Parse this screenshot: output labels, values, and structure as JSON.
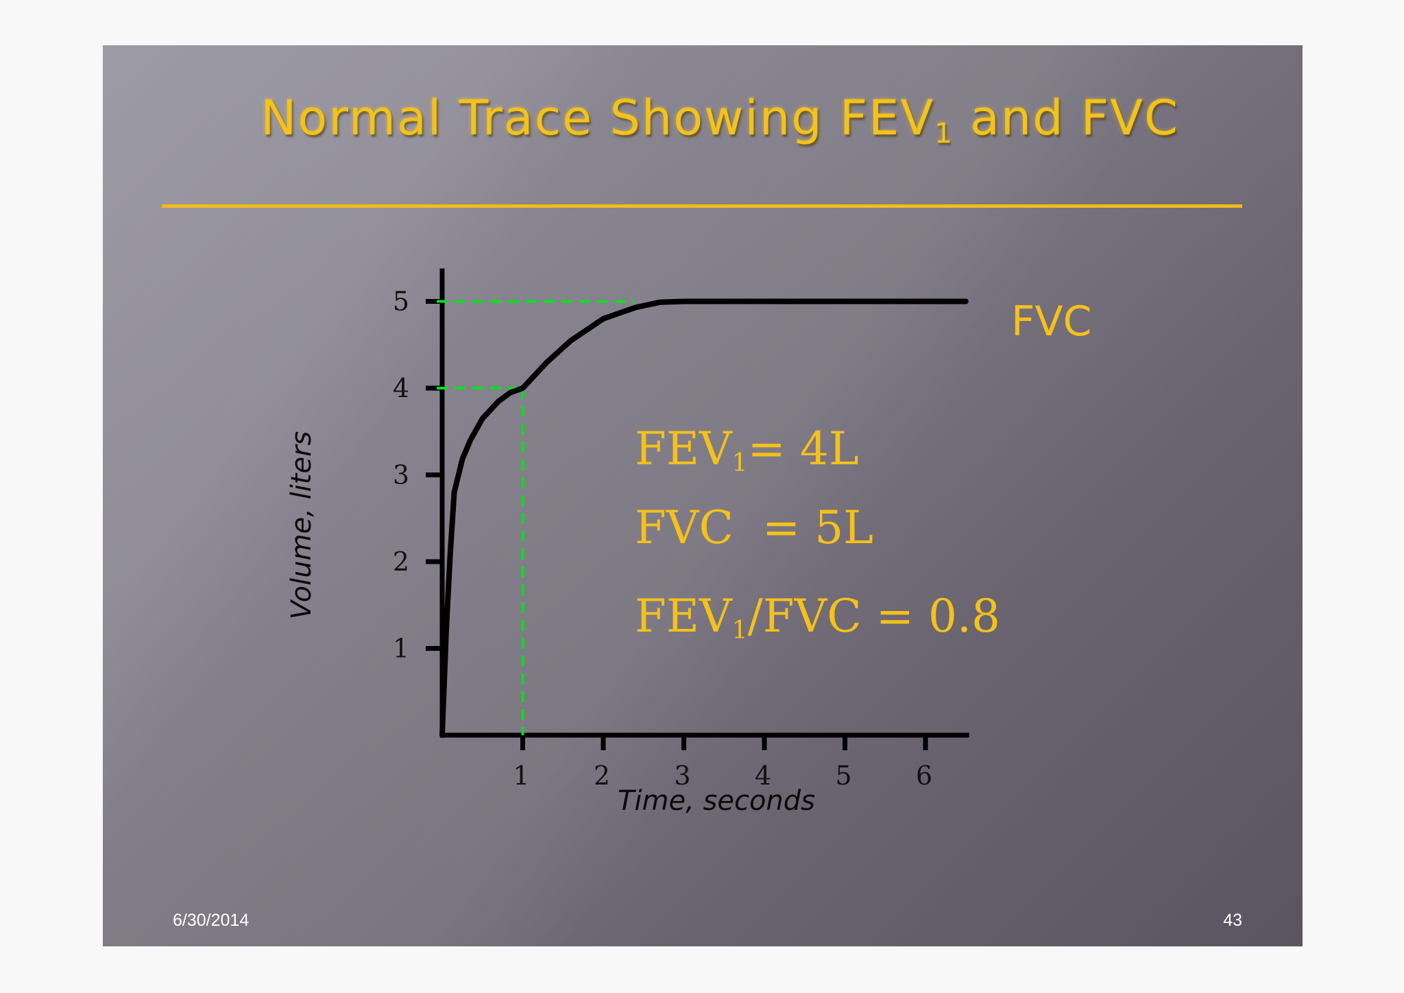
{
  "slide": {
    "title_main": "Normal Trace Showing FEV",
    "title_sub": "1",
    "title_tail": " and FVC",
    "date": "6/30/2014",
    "page_number": "43"
  },
  "annotations": {
    "fvc_label": "FVC",
    "eq1_prefix": "FEV",
    "eq1_sub": "1",
    "eq1_rest": "= 4L",
    "eq2": "FVC  = 5L",
    "eq3_prefix": "FEV",
    "eq3_sub": "1",
    "eq3_rest": "/FVC = 0.8"
  },
  "colors": {
    "title": "#f3c21b",
    "text": "#f5c11a",
    "curve": "#000000",
    "guide": "#00e21a"
  },
  "chart_data": {
    "type": "line",
    "xlabel": "Time, seconds",
    "ylabel": "Volume, liters",
    "xlim": [
      0,
      6.5
    ],
    "ylim": [
      0,
      5.3
    ],
    "x_ticks": [
      1,
      2,
      3,
      4,
      5,
      6
    ],
    "y_ticks": [
      1,
      2,
      3,
      4,
      5
    ],
    "series": [
      {
        "x": [
          0,
          0.05,
          0.1,
          0.15,
          0.25,
          0.35,
          0.5,
          0.7,
          0.85,
          1.0,
          1.3,
          1.6,
          2.0,
          2.4,
          2.7,
          3.0,
          3.2,
          4.0,
          5.0,
          6.0,
          6.5
        ],
        "y": [
          0,
          1.2,
          2.1,
          2.8,
          3.18,
          3.4,
          3.65,
          3.85,
          3.95,
          4.0,
          4.3,
          4.55,
          4.8,
          4.93,
          4.99,
          5.0,
          5.0,
          5.0,
          5.0,
          5.0,
          5.0
        ]
      }
    ],
    "reference_lines": [
      {
        "x": 1,
        "y": 4
      },
      {
        "x": 2.4,
        "y": 5
      }
    ],
    "grid": false
  }
}
